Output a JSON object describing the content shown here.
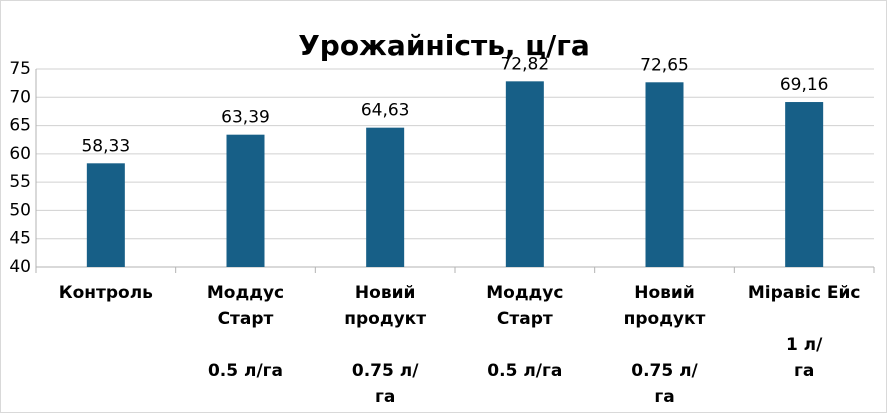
{
  "chart_data": {
    "type": "bar",
    "title": "Урожайність, ц/га",
    "categories": [
      "Контроль",
      "Моддус\nСтарт\n\n0.5 л/га",
      "Новий\nпродукт\n\n0.75 л/\nга",
      "Моддус\nСтарт\n\n0.5 л/га",
      "Новий\nпродукт\n\n0.75 л/\nга",
      "Міравіс Ейс\n\n1 л/\nга"
    ],
    "values": [
      58.33,
      63.39,
      64.63,
      72.82,
      72.65,
      69.16
    ],
    "value_labels": [
      "58,33",
      "63,39",
      "64,63",
      "72,82",
      "72,65",
      "69,16"
    ],
    "color": "#175f87",
    "ylim": [
      40,
      75
    ],
    "yticks": [
      40,
      45,
      50,
      55,
      60,
      65,
      70,
      75
    ],
    "grid": true
  }
}
